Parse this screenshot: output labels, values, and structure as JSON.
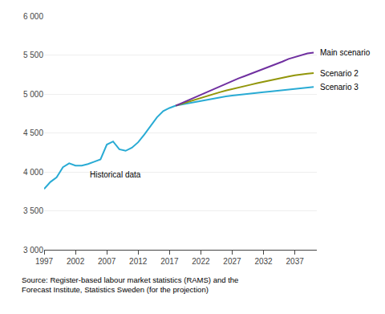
{
  "chart_data": {
    "type": "line",
    "series": [
      {
        "name": "Historical data",
        "color": "#29ABD4",
        "x": [
          1997,
          1998,
          1999,
          2000,
          2001,
          2002,
          2003,
          2004,
          2005,
          2006,
          2007,
          2008,
          2009,
          2010,
          2011,
          2012,
          2013,
          2014,
          2015,
          2016,
          2017,
          2018
        ],
        "values": [
          3780,
          3870,
          3930,
          4060,
          4110,
          4080,
          4080,
          4100,
          4130,
          4160,
          4350,
          4390,
          4290,
          4270,
          4310,
          4380,
          4480,
          4590,
          4700,
          4780,
          4820,
          4850
        ]
      },
      {
        "name": "Scenario 3",
        "color": "#29ABD4",
        "x": [
          2018,
          2019,
          2020,
          2021,
          2022,
          2023,
          2024,
          2025,
          2026,
          2027,
          2028,
          2029,
          2030,
          2031,
          2032,
          2033,
          2034,
          2035,
          2036,
          2037,
          2038,
          2039,
          2040
        ],
        "values": [
          4850,
          4865,
          4882,
          4898,
          4913,
          4928,
          4942,
          4956,
          4968,
          4980,
          4990,
          5000,
          5008,
          5016,
          5024,
          5032,
          5040,
          5048,
          5056,
          5064,
          5072,
          5080,
          5090
        ]
      },
      {
        "name": "Scenario 2",
        "color": "#92960A",
        "x": [
          2018,
          2019,
          2020,
          2021,
          2022,
          2023,
          2024,
          2025,
          2026,
          2027,
          2028,
          2029,
          2030,
          2031,
          2032,
          2033,
          2034,
          2035,
          2036,
          2037,
          2038,
          2039,
          2040
        ],
        "values": [
          4850,
          4875,
          4900,
          4928,
          4953,
          4977,
          5000,
          5022,
          5044,
          5065,
          5085,
          5102,
          5120,
          5140,
          5158,
          5176,
          5195,
          5210,
          5225,
          5240,
          5252,
          5260,
          5268
        ]
      },
      {
        "name": "Main scenario",
        "color": "#7030A0",
        "x": [
          2018,
          2019,
          2020,
          2021,
          2022,
          2023,
          2024,
          2025,
          2026,
          2027,
          2028,
          2029,
          2030,
          2031,
          2032,
          2033,
          2034,
          2035,
          2036,
          2037,
          2038,
          2039,
          2040
        ],
        "values": [
          4850,
          4885,
          4920,
          4960,
          4995,
          5030,
          5065,
          5100,
          5135,
          5170,
          5200,
          5230,
          5260,
          5290,
          5325,
          5355,
          5385,
          5415,
          5450,
          5475,
          5500,
          5520,
          5530
        ]
      }
    ],
    "xlim": [
      1997,
      2040.5
    ],
    "xticks": [
      1997,
      2002,
      2007,
      2012,
      2017,
      2022,
      2027,
      2032,
      2037
    ],
    "ylim": [
      3000,
      6000
    ],
    "yticks": [
      {
        "value": 3000,
        "label": "3 000"
      },
      {
        "value": 3500,
        "label": "3 500"
      },
      {
        "value": 4000,
        "label": "4 000"
      },
      {
        "value": 4500,
        "label": "4 500"
      },
      {
        "value": 5000,
        "label": "5 000"
      },
      {
        "value": 5500,
        "label": "5 500"
      },
      {
        "value": 6000,
        "label": "6 000"
      }
    ],
    "grid": true,
    "annotations": [
      "Source: Register-based labour market statistics (RAMS) and the",
      "Forecast Institute, Statistics Sweden (for the projection)"
    ]
  }
}
